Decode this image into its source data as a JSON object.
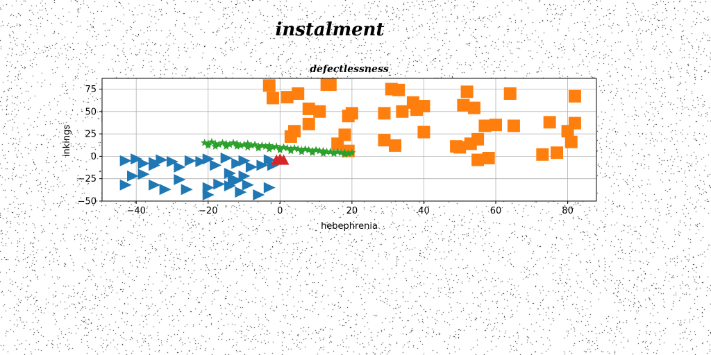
{
  "suptitle": "instalment",
  "chart_data": {
    "type": "scatter",
    "title": "defectlessness",
    "xlabel": "hebephrenia",
    "ylabel": "inkings",
    "xlim": [
      -49.5,
      88
    ],
    "ylim": [
      -50,
      87
    ],
    "xticks": [
      -40,
      -20,
      0,
      20,
      40,
      60,
      80
    ],
    "yticks": [
      -50,
      -25,
      0,
      25,
      50,
      75
    ],
    "grid": true,
    "legend": "none",
    "series": [
      {
        "marker": "triangle-right",
        "color": "#1f77b4",
        "points": [
          [
            -43,
            -5
          ],
          [
            -40,
            -3
          ],
          [
            -38,
            -8
          ],
          [
            -35,
            -10
          ],
          [
            -33,
            -4
          ],
          [
            -30,
            -6
          ],
          [
            -28,
            -12
          ],
          [
            -25,
            -5
          ],
          [
            -22,
            -6
          ],
          [
            -20,
            -3
          ],
          [
            -18,
            -10
          ],
          [
            -15,
            -2
          ],
          [
            -12,
            -8
          ],
          [
            -10,
            -5
          ],
          [
            -8,
            -12
          ],
          [
            -5,
            -10
          ],
          [
            -3,
            -4
          ],
          [
            -2,
            -10
          ],
          [
            -41,
            -22
          ],
          [
            -38,
            -20
          ],
          [
            -35,
            -32
          ],
          [
            -32,
            -37
          ],
          [
            -28,
            -26
          ],
          [
            -26,
            -37
          ],
          [
            -20,
            -35
          ],
          [
            -20,
            -43
          ],
          [
            -17,
            -31
          ],
          [
            -14,
            -33
          ],
          [
            -12,
            -27
          ],
          [
            -11,
            -40
          ],
          [
            -9,
            -32
          ],
          [
            -6,
            -43
          ],
          [
            -3,
            -35
          ],
          [
            -14,
            -19
          ],
          [
            -13,
            -26
          ],
          [
            -10,
            -22
          ],
          [
            -43,
            -32
          ],
          [
            -35,
            -7
          ]
        ]
      },
      {
        "marker": "square",
        "color": "#ff7f0e",
        "points": [
          [
            -3,
            79
          ],
          [
            -2,
            65
          ],
          [
            2,
            66
          ],
          [
            5,
            70
          ],
          [
            8,
            53
          ],
          [
            8,
            36
          ],
          [
            11,
            50
          ],
          [
            13,
            80
          ],
          [
            14,
            80
          ],
          [
            18,
            24
          ],
          [
            19,
            45
          ],
          [
            20,
            48
          ],
          [
            3,
            22
          ],
          [
            4,
            28
          ],
          [
            16,
            14
          ],
          [
            19,
            6
          ],
          [
            29,
            48
          ],
          [
            31,
            75
          ],
          [
            32,
            12
          ],
          [
            33,
            74
          ],
          [
            34,
            50
          ],
          [
            37,
            60
          ],
          [
            38,
            52
          ],
          [
            40,
            56
          ],
          [
            40,
            27
          ],
          [
            49,
            11
          ],
          [
            50,
            10
          ],
          [
            51,
            57
          ],
          [
            52,
            72
          ],
          [
            53,
            14
          ],
          [
            54,
            54
          ],
          [
            55,
            19
          ],
          [
            55,
            -4
          ],
          [
            57,
            34
          ],
          [
            58,
            -2
          ],
          [
            60,
            35
          ],
          [
            64,
            70
          ],
          [
            65,
            34
          ],
          [
            73,
            2
          ],
          [
            75,
            38
          ],
          [
            77,
            4
          ],
          [
            80,
            28
          ],
          [
            81,
            16
          ],
          [
            82,
            67
          ],
          [
            82,
            37
          ],
          [
            29,
            18
          ]
        ]
      },
      {
        "marker": "star",
        "color": "#2ca02c",
        "points": [
          [
            -21,
            15
          ],
          [
            -20,
            14
          ],
          [
            -19,
            16
          ],
          [
            -18,
            14
          ],
          [
            -17,
            13
          ],
          [
            -16,
            15
          ],
          [
            -15,
            14
          ],
          [
            -14,
            13
          ],
          [
            -13,
            15
          ],
          [
            -12,
            14
          ],
          [
            -11,
            12
          ],
          [
            -10,
            13
          ],
          [
            -9,
            14
          ],
          [
            -8,
            12
          ],
          [
            -7,
            13
          ],
          [
            -6,
            11
          ],
          [
            -5,
            12
          ],
          [
            -4,
            11
          ],
          [
            -3,
            12
          ],
          [
            -2,
            10
          ],
          [
            -1,
            11
          ],
          [
            0,
            9
          ],
          [
            1,
            10
          ],
          [
            2,
            9
          ],
          [
            3,
            8
          ],
          [
            4,
            9
          ],
          [
            5,
            8
          ],
          [
            6,
            7
          ],
          [
            7,
            8
          ],
          [
            8,
            7
          ],
          [
            9,
            6
          ],
          [
            10,
            7
          ],
          [
            11,
            6
          ],
          [
            12,
            6
          ],
          [
            13,
            5
          ],
          [
            14,
            5
          ],
          [
            15,
            4
          ],
          [
            16,
            5
          ],
          [
            17,
            4
          ],
          [
            18,
            4
          ],
          [
            19,
            3
          ],
          [
            20,
            4
          ],
          [
            -20,
            12
          ],
          [
            -18,
            11
          ],
          [
            -15,
            11
          ],
          [
            -12,
            11
          ],
          [
            -9,
            10
          ],
          [
            -6,
            9
          ],
          [
            -3,
            8
          ],
          [
            0,
            7
          ],
          [
            3,
            6
          ],
          [
            6,
            5
          ],
          [
            9,
            4
          ],
          [
            12,
            3
          ],
          [
            15,
            3
          ],
          [
            18,
            2
          ]
        ]
      },
      {
        "marker": "triangle-up",
        "color": "#d62728",
        "points": [
          [
            0,
            -3
          ],
          [
            -1,
            -4
          ],
          [
            1,
            -4
          ]
        ]
      }
    ]
  }
}
